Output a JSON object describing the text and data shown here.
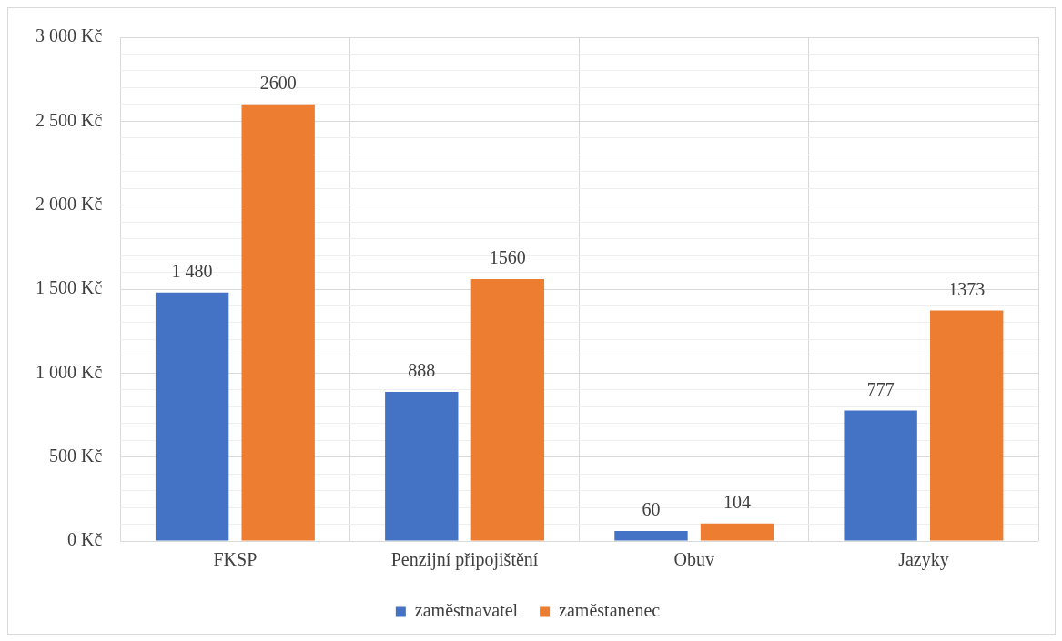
{
  "chart_data": {
    "type": "bar",
    "categories": [
      "FKSP",
      "Penzijní připojištění",
      "Obuv",
      "Jazyky"
    ],
    "series": [
      {
        "name": "zaměstnavatel",
        "color": "#4472c4",
        "values": [
          1480,
          888,
          60,
          777
        ],
        "value_labels": [
          "1 480",
          "888",
          "60",
          "777"
        ]
      },
      {
        "name": "zaměstanenec",
        "color": "#ed7d31",
        "values": [
          2600,
          1560,
          104,
          1373
        ],
        "value_labels": [
          "2600",
          "1560",
          "104",
          "1373"
        ]
      }
    ],
    "ylim": [
      0,
      3000
    ],
    "yticks": [
      {
        "value": 0,
        "label": "0 Kč"
      },
      {
        "value": 100,
        "label": null
      },
      {
        "value": 200,
        "label": null
      },
      {
        "value": 300,
        "label": null
      },
      {
        "value": 400,
        "label": null
      },
      {
        "value": 500,
        "label": "500 Kč"
      },
      {
        "value": 600,
        "label": null
      },
      {
        "value": 700,
        "label": null
      },
      {
        "value": 800,
        "label": null
      },
      {
        "value": 900,
        "label": null
      },
      {
        "value": 1000,
        "label": "1 000 Kč"
      },
      {
        "value": 1100,
        "label": null
      },
      {
        "value": 1200,
        "label": null
      },
      {
        "value": 1300,
        "label": null
      },
      {
        "value": 1400,
        "label": null
      },
      {
        "value": 1500,
        "label": "1 500 Kč"
      },
      {
        "value": 1600,
        "label": null
      },
      {
        "value": 1700,
        "label": null
      },
      {
        "value": 1800,
        "label": null
      },
      {
        "value": 1900,
        "label": null
      },
      {
        "value": 2000,
        "label": "2 000 Kč"
      },
      {
        "value": 2100,
        "label": null
      },
      {
        "value": 2200,
        "label": null
      },
      {
        "value": 2300,
        "label": null
      },
      {
        "value": 2400,
        "label": null
      },
      {
        "value": 2500,
        "label": "2 500 Kč"
      },
      {
        "value": 2600,
        "label": null
      },
      {
        "value": 2700,
        "label": null
      },
      {
        "value": 2800,
        "label": null
      },
      {
        "value": 2900,
        "label": null
      },
      {
        "value": 3000,
        "label": "3 000 Kč"
      }
    ],
    "grid": true,
    "legend": "bottom"
  }
}
